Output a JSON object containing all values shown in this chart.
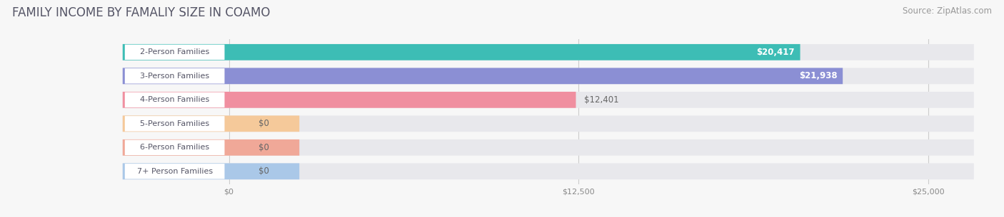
{
  "title": "FAMILY INCOME BY FAMALIY SIZE IN COAMO",
  "source": "Source: ZipAtlas.com",
  "categories": [
    "2-Person Families",
    "3-Person Families",
    "4-Person Families",
    "5-Person Families",
    "6-Person Families",
    "7+ Person Families"
  ],
  "values": [
    20417,
    21938,
    12401,
    0,
    0,
    0
  ],
  "bar_colors": [
    "#3dbdb5",
    "#8b8fd4",
    "#f08fa0",
    "#f5c99a",
    "#f0a898",
    "#aac8e8"
  ],
  "value_labels": [
    "$20,417",
    "$21,938",
    "$12,401",
    "$0",
    "$0",
    "$0"
  ],
  "value_label_inside": [
    true,
    true,
    false,
    false,
    false,
    false
  ],
  "xlim_max": 25000,
  "xticks": [
    0,
    12500,
    25000
  ],
  "xtick_labels": [
    "$0",
    "$12,500",
    "$25,000"
  ],
  "background_color": "#f7f7f7",
  "bar_bg_color": "#e8e8ec",
  "label_box_color": "#ffffff",
  "title_fontsize": 12,
  "source_fontsize": 8.5,
  "cat_fontsize": 8,
  "val_fontsize": 8.5
}
